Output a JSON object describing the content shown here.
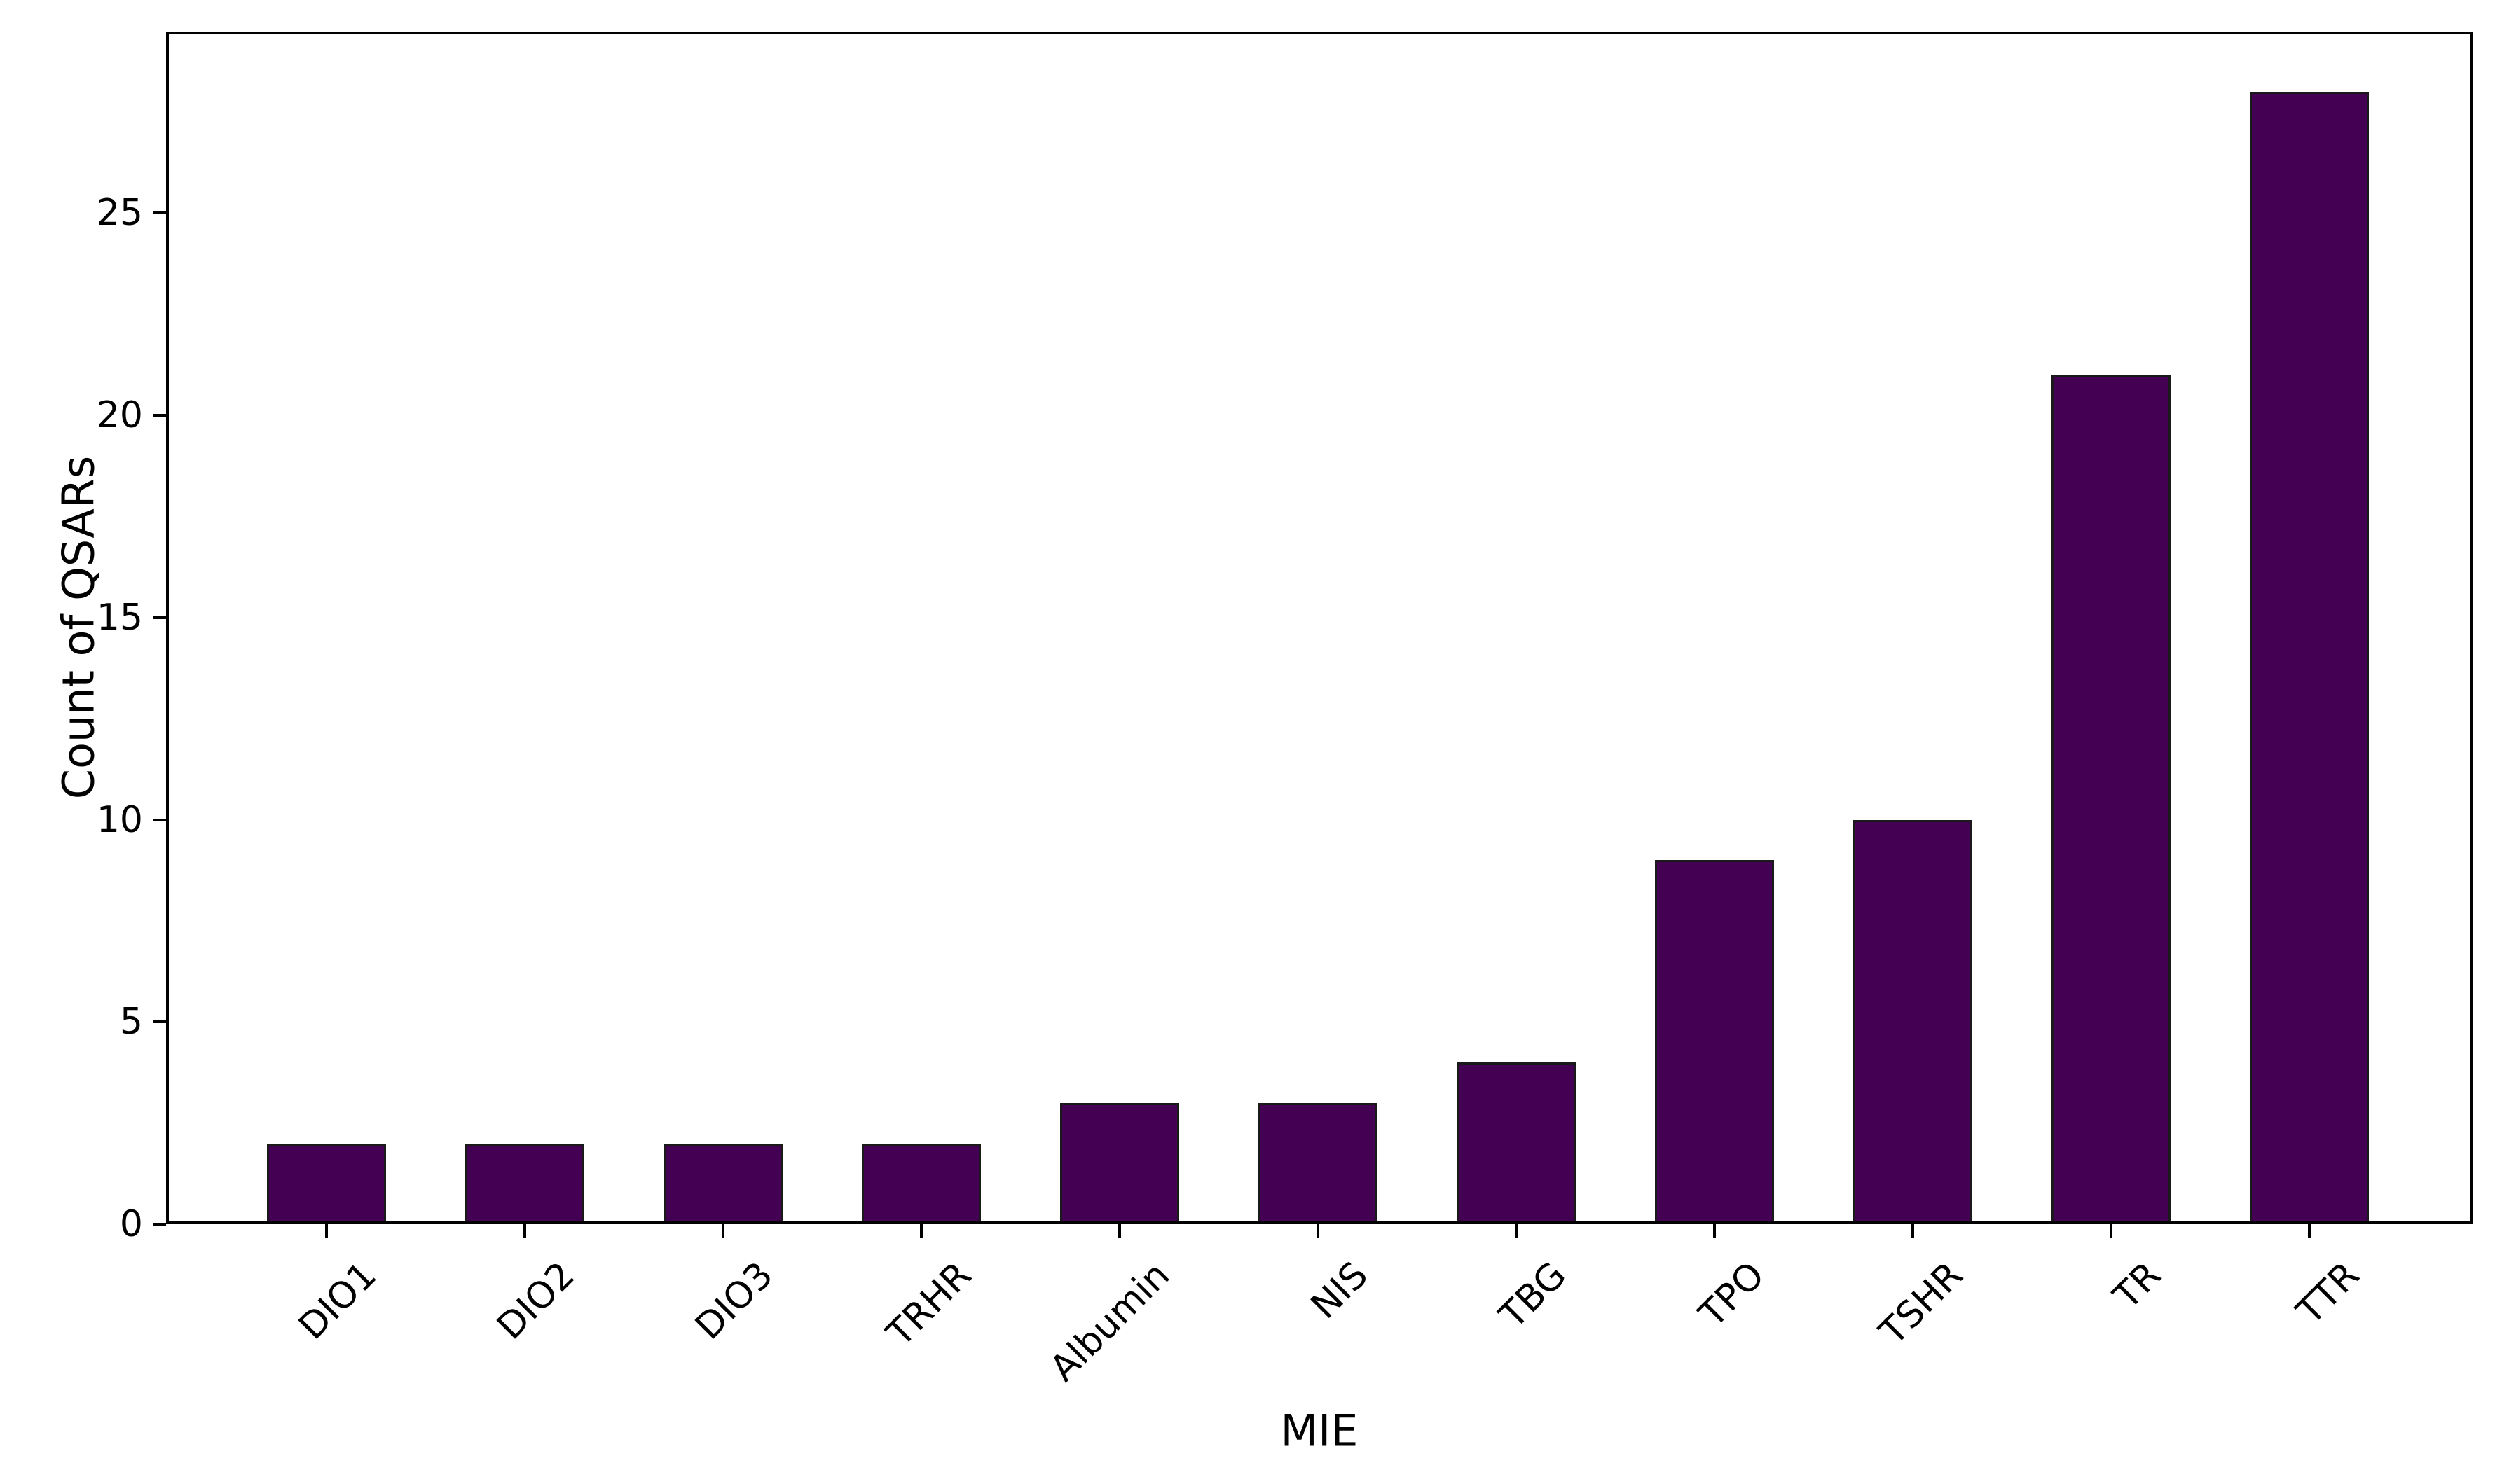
{
  "chart_data": {
    "type": "bar",
    "title": "",
    "xlabel": "MIE",
    "ylabel": "Count of QSARs",
    "categories": [
      "DIO1",
      "DIO2",
      "DIO3",
      "TRHR",
      "Albumin",
      "NIS",
      "TBG",
      "TPO",
      "TSHR",
      "TR",
      "TTR"
    ],
    "values": [
      2,
      2,
      2,
      2,
      3,
      3,
      4,
      9,
      10,
      21,
      28
    ],
    "yticks": [
      0,
      5,
      10,
      15,
      20,
      25
    ],
    "ylim": [
      0,
      29.5
    ],
    "x_tick_rotation_deg": 45,
    "grid": false,
    "legend": false,
    "bar_color": "#440154",
    "bar_edge_color": "#1a1a1a",
    "axis_color": "#000000",
    "background_color": "#ffffff"
  }
}
